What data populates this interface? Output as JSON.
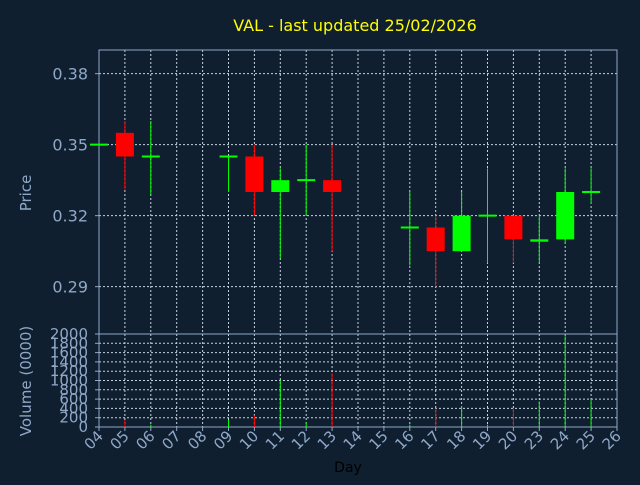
{
  "colors": {
    "background": "#0f1f2f",
    "frame": "#8fa8c8",
    "grid": "#c8d4e0",
    "axis_text": "#8fa8c8",
    "title": "#ffff00",
    "up": "#00ff00",
    "down": "#ff0000",
    "xlabel": "#000000"
  },
  "chart_data": {
    "type": "candlestick",
    "title": "VAL - last updated 25/02/2026",
    "grid": true,
    "price_panel": {
      "ylabel": "Price",
      "ylim": [
        0.27,
        0.39
      ],
      "yticks": [
        "0.29",
        "0.32",
        "0.35",
        "0.38"
      ],
      "ytick_values": [
        0.29,
        0.32,
        0.35,
        0.38
      ]
    },
    "volume_panel": {
      "ylabel": "Volume (0000)",
      "ylim": [
        0,
        2000
      ],
      "yticks": [
        "0",
        "200",
        "400",
        "600",
        "800",
        "1000",
        "1200",
        "1400",
        "1600",
        "1800",
        "2000"
      ],
      "ytick_values": [
        0,
        200,
        400,
        600,
        800,
        1000,
        1200,
        1400,
        1600,
        1800,
        2000
      ]
    },
    "xlabel": "Day",
    "xticks": [
      "04",
      "05",
      "06",
      "07",
      "08",
      "09",
      "10",
      "11",
      "12",
      "13",
      "14",
      "15",
      "16",
      "17",
      "18",
      "19",
      "20",
      "23",
      "24",
      "25",
      "26"
    ],
    "candles": [
      {
        "day": "04",
        "open": 0.35,
        "high": 0.35,
        "low": 0.35,
        "close": 0.35,
        "volume": 0
      },
      {
        "day": "05",
        "open": 0.355,
        "high": 0.36,
        "low": 0.331,
        "close": 0.345,
        "volume": 150
      },
      {
        "day": "06",
        "open": 0.345,
        "high": 0.36,
        "low": 0.329,
        "close": 0.345,
        "volume": 50
      },
      {
        "day": "09",
        "open": 0.345,
        "high": 0.345,
        "low": 0.33,
        "close": 0.345,
        "volume": 150
      },
      {
        "day": "10",
        "open": 0.345,
        "high": 0.35,
        "low": 0.32,
        "close": 0.33,
        "volume": 250
      },
      {
        "day": "11",
        "open": 0.33,
        "high": 0.34,
        "low": 0.302,
        "close": 0.335,
        "volume": 1000
      },
      {
        "day": "12",
        "open": 0.335,
        "high": 0.35,
        "low": 0.32,
        "close": 0.335,
        "volume": 100
      },
      {
        "day": "13",
        "open": 0.335,
        "high": 0.35,
        "low": 0.305,
        "close": 0.33,
        "volume": 1150
      },
      {
        "day": "16",
        "open": 0.315,
        "high": 0.33,
        "low": 0.299,
        "close": 0.315,
        "volume": 50
      },
      {
        "day": "17",
        "open": 0.315,
        "high": 0.32,
        "low": 0.29,
        "close": 0.305,
        "volume": 400
      },
      {
        "day": "18",
        "open": 0.305,
        "high": 0.33,
        "low": 0.305,
        "close": 0.32,
        "volume": 450
      },
      {
        "day": "19",
        "open": 0.32,
        "high": 0.34,
        "low": 0.3,
        "close": 0.32,
        "volume": 50
      },
      {
        "day": "20",
        "open": 0.32,
        "high": 0.32,
        "low": 0.3,
        "close": 0.31,
        "volume": 400
      },
      {
        "day": "23",
        "open": 0.309,
        "high": 0.32,
        "low": 0.3,
        "close": 0.31,
        "volume": 550
      },
      {
        "day": "24",
        "open": 0.31,
        "high": 0.34,
        "low": 0.308,
        "close": 0.33,
        "volume": 1950
      },
      {
        "day": "25",
        "open": 0.33,
        "high": 0.34,
        "low": 0.325,
        "close": 0.33,
        "volume": 600
      }
    ]
  }
}
